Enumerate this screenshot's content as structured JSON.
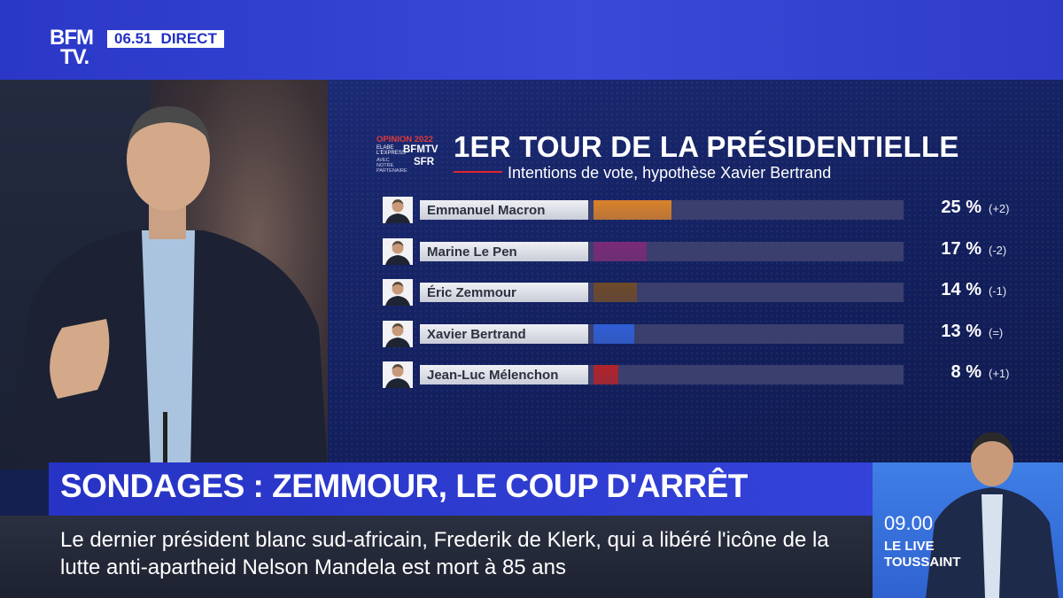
{
  "channel": {
    "logo_line1": "BFM",
    "logo_line2": "TV.",
    "time": "06.51",
    "live_label": "DIRECT"
  },
  "branding": {
    "opinion": "OPINION 2022",
    "pollster": "ELABE L'EXPRESS",
    "channel": "BFMTV",
    "partner_text": "AVEC NOTRE PARTENAIRE",
    "partner": "SFR"
  },
  "chart_data": {
    "type": "bar",
    "title": "1ER TOUR DE LA PRÉSIDENTIELLE",
    "subtitle": "Intentions de vote, hypothèse Xavier Bertrand",
    "categories": [
      "Emmanuel Macron",
      "Marine Le Pen",
      "Éric Zemmour",
      "Xavier Bertrand",
      "Jean-Luc Mélenchon"
    ],
    "values": [
      25,
      17,
      14,
      13,
      8
    ],
    "value_labels": [
      "25 %",
      "17 %",
      "14 %",
      "13 %",
      "8 %"
    ],
    "changes": [
      "(+2)",
      "(-2)",
      "(-1)",
      "(=)",
      "(+1)"
    ],
    "colors": [
      "#d9822b",
      "#7a2a78",
      "#6e4a2a",
      "#2f5fd6",
      "#b3232b"
    ],
    "xlim": [
      0,
      100
    ]
  },
  "headline": "SONDAGES : ZEMMOUR, LE COUP D'ARRÊT",
  "ticker": "Le dernier président blanc sud-africain, Frederik de Klerk, qui a libéré l'icône de la lutte anti-apartheid Nelson Mandela est mort à 85 ans",
  "promo": {
    "time": "09.00",
    "line1": "LE LIVE",
    "line2": "TOUSSAINT"
  }
}
